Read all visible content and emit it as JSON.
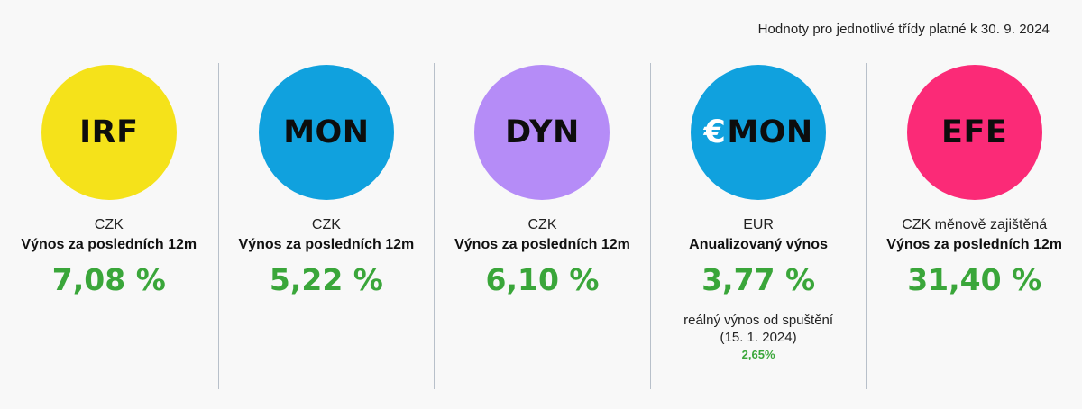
{
  "note": "Hodnoty pro jednotlivé třídy platné k 30. 9. 2024",
  "funds": [
    {
      "code": "IRF",
      "euro_prefix": "",
      "color": "#f5e21a",
      "currency": "CZK",
      "metric": "Výnos za posledních 12m",
      "value": "7,08 %"
    },
    {
      "code": "MON",
      "euro_prefix": "",
      "color": "#10a1de",
      "currency": "CZK",
      "metric": "Výnos za posledních 12m",
      "value": "5,22 %"
    },
    {
      "code": "DYN",
      "euro_prefix": "",
      "color": "#b58cf7",
      "currency": "CZK",
      "metric": "Výnos za posledních 12m",
      "value": "6,10 %"
    },
    {
      "code": "MON",
      "euro_prefix": "€",
      "color": "#10a1de",
      "currency": "EUR",
      "metric": "Anualizovaný výnos",
      "value": "3,77 %",
      "sub_label": "reálný výnos od spuštění (15. 1. 2024)",
      "sub_value": "2,65%"
    },
    {
      "code": "EFE",
      "euro_prefix": "",
      "color": "#fb2a77",
      "currency": "CZK měnově zajištěná",
      "metric": "Výnos za posledních 12m",
      "value": "31,40 %"
    }
  ]
}
